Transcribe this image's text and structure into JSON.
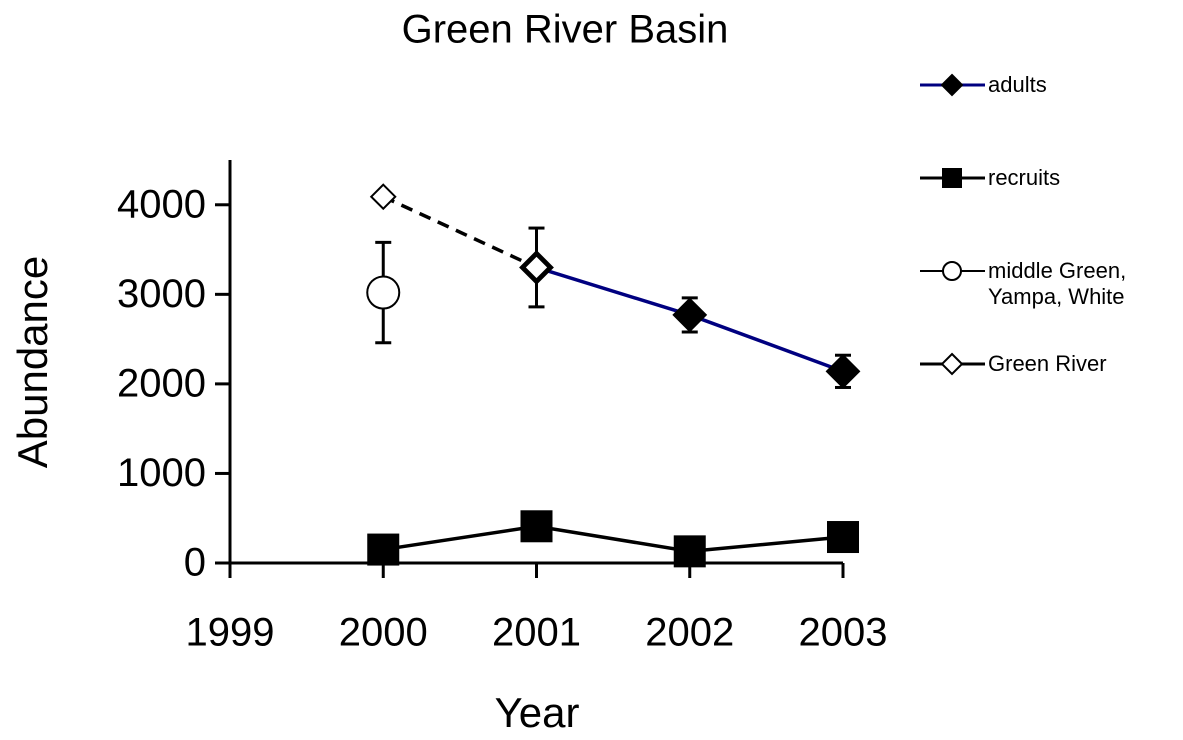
{
  "chart_data": {
    "type": "line",
    "title": "Green River Basin",
    "xlabel": "Year",
    "ylabel": "Abundance",
    "xlim": [
      1999,
      2003
    ],
    "xticks": [
      1999,
      2000,
      2001,
      2002,
      2003
    ],
    "ylim": [
      0,
      4500
    ],
    "yticks": [
      0,
      1000,
      2000,
      3000,
      4000
    ],
    "series": [
      {
        "name": "adults",
        "color": "#000080",
        "marker": "diamond",
        "marker_fill": "#000000",
        "line": true,
        "dashed": false,
        "x": [
          2001,
          2002,
          2003
        ],
        "values": [
          3300,
          2770,
          2140
        ],
        "errors": [
          440,
          190,
          180
        ]
      },
      {
        "name": "recruits",
        "color": "#000000",
        "marker": "square",
        "marker_fill": "#000000",
        "line": true,
        "dashed": false,
        "x": [
          2000,
          2001,
          2002,
          2003
        ],
        "values": [
          150,
          410,
          130,
          290
        ]
      },
      {
        "name": "middle Green, Yampa, White",
        "color": "#000000",
        "marker": "circle",
        "marker_fill": "#ffffff",
        "line": false,
        "dashed": false,
        "x": [
          2000
        ],
        "values": [
          3020
        ],
        "errors": [
          560
        ]
      },
      {
        "name": "Green River",
        "color": "#000000",
        "marker": "diamond",
        "marker_fill": "#ffffff",
        "line": true,
        "dashed": true,
        "x": [
          2000,
          2001
        ],
        "values": [
          4090,
          3300
        ]
      }
    ]
  }
}
